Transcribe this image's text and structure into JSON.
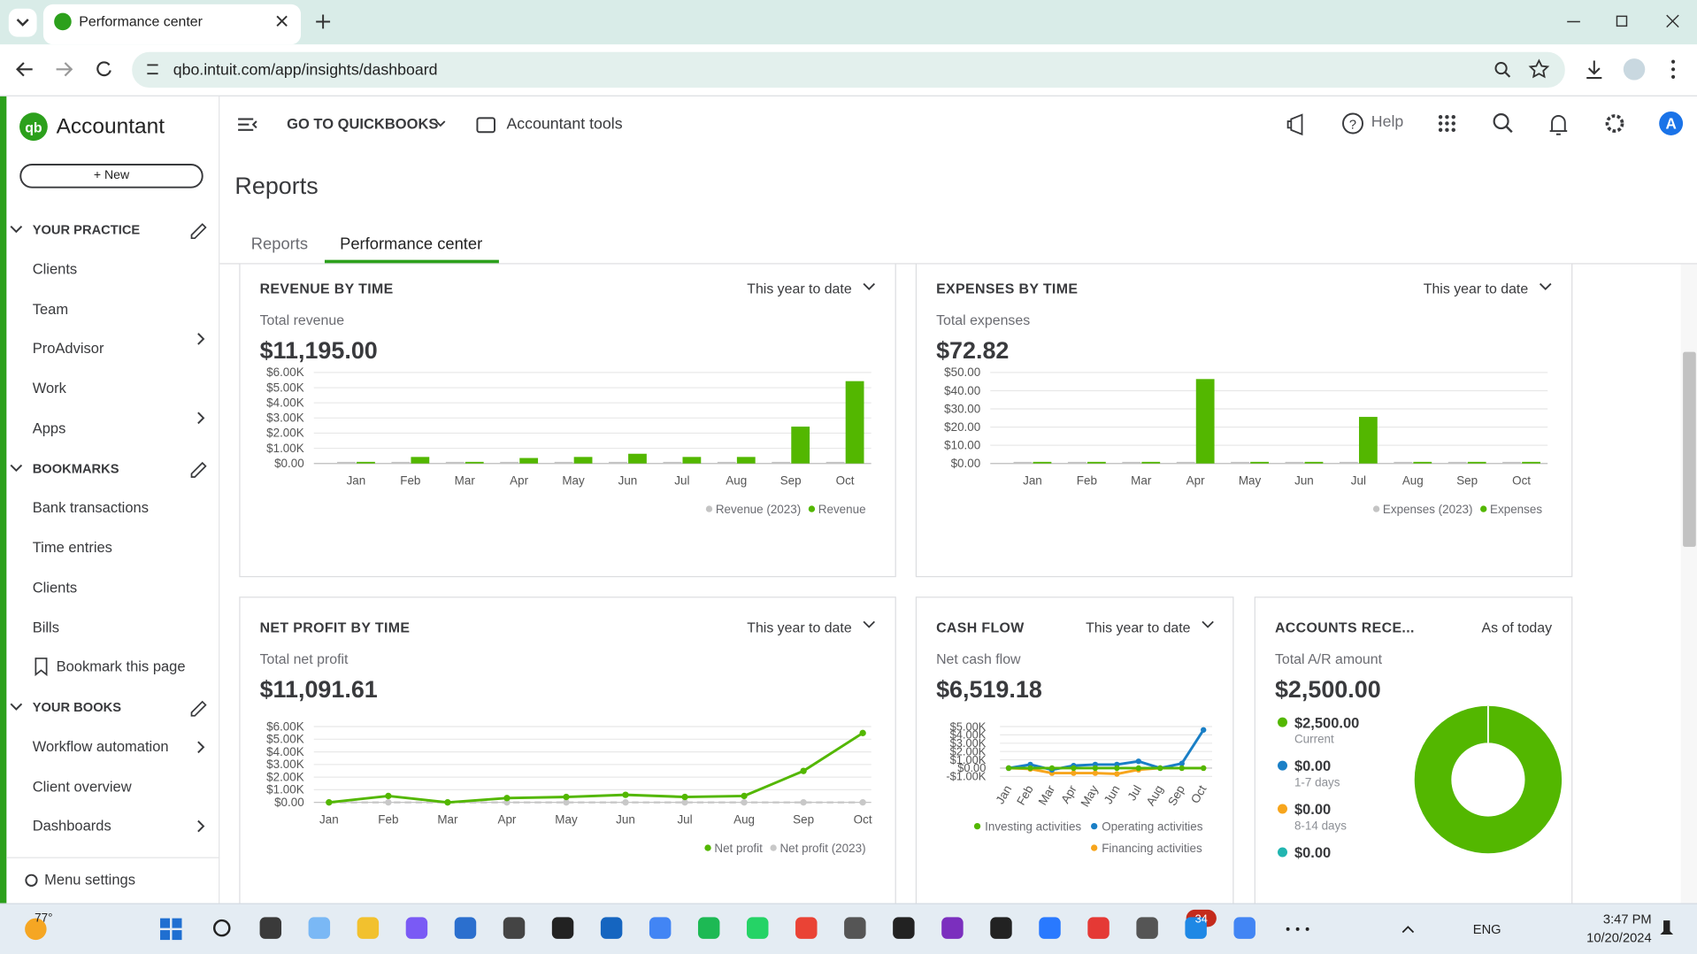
{
  "browser": {
    "tab_title": "Performance center",
    "url": "qbo.intuit.com/app/insights/dashboard"
  },
  "sidebar": {
    "brand": "Accountant",
    "new_button": "+ New",
    "sections": [
      {
        "title": "YOUR PRACTICE",
        "items": [
          "Clients",
          "Team",
          "ProAdvisor",
          "Work",
          "Apps"
        ]
      },
      {
        "title": "BOOKMARKS",
        "items": [
          "Bank transactions",
          "Time entries",
          "Clients",
          "Bills"
        ]
      },
      {
        "title": "YOUR BOOKS",
        "items": [
          "Workflow automation",
          "Client overview",
          "Dashboards"
        ]
      }
    ],
    "bookmark_link": "Bookmark this page",
    "menu_settings": "Menu settings"
  },
  "header": {
    "go_to": "GO TO QUICKBOOKS",
    "tools": "Accountant tools",
    "help": "Help",
    "avatar": "A"
  },
  "page": {
    "title": "Reports",
    "tabs": [
      "Reports",
      "Performance center"
    ]
  },
  "widgets": {
    "revenue": {
      "title": "REVENUE BY TIME",
      "period": "This year to date",
      "metric_label": "Total revenue",
      "metric": "$11,195.00",
      "chart": {
        "type": "bar",
        "categories": [
          "Jan",
          "Feb",
          "Mar",
          "Apr",
          "May",
          "Jun",
          "Jul",
          "Aug",
          "Sep",
          "Oct"
        ],
        "series": [
          {
            "name": "Revenue (2023)",
            "color": "#c4c4c4",
            "values": [
              0,
              0,
              0,
              0,
              0,
              0,
              0,
              0,
              0,
              0
            ]
          },
          {
            "name": "Revenue",
            "color": "#53b700",
            "values": [
              100,
              430,
              100,
              360,
              430,
              640,
              430,
              430,
              2430,
              5430
            ]
          }
        ],
        "ylim": [
          0,
          6000
        ],
        "yticks": [
          {
            "value": 0,
            "label": "$0.00"
          },
          {
            "value": 1000,
            "label": "$1.00K"
          },
          {
            "value": 2000,
            "label": "$2.00K"
          },
          {
            "value": 3000,
            "label": "$3.00K"
          },
          {
            "value": 4000,
            "label": "$4.00K"
          },
          {
            "value": 5000,
            "label": "$5.00K"
          },
          {
            "value": 6000,
            "label": "$6.00K"
          }
        ],
        "grid": true
      }
    },
    "expenses": {
      "title": "EXPENSES BY TIME",
      "period": "This year to date",
      "metric_label": "Total expenses",
      "metric": "$72.82",
      "chart": {
        "type": "bar",
        "categories": [
          "Jan",
          "Feb",
          "Mar",
          "Apr",
          "May",
          "Jun",
          "Jul",
          "Aug",
          "Sep",
          "Oct"
        ],
        "series": [
          {
            "name": "Expenses (2023)",
            "color": "#c4c4c4",
            "values": [
              0,
              0,
              0,
              0,
              0,
              0,
              0,
              0,
              0,
              0
            ]
          },
          {
            "name": "Expenses",
            "color": "#53b700",
            "values": [
              0.1,
              0.1,
              0.1,
              46.4,
              0.1,
              0.1,
              25.6,
              0.1,
              0.1,
              0.1
            ]
          }
        ],
        "ylim": [
          0,
          50
        ],
        "yticks": [
          {
            "value": 0,
            "label": "$0.00"
          },
          {
            "value": 10,
            "label": "$10.00"
          },
          {
            "value": 20,
            "label": "$20.00"
          },
          {
            "value": 30,
            "label": "$30.00"
          },
          {
            "value": 40,
            "label": "$40.00"
          },
          {
            "value": 50,
            "label": "$50.00"
          }
        ],
        "grid": true
      }
    },
    "net_profit": {
      "title": "NET PROFIT BY TIME",
      "period": "This year to date",
      "metric_label": "Total net profit",
      "metric": "$11,091.61",
      "chart": {
        "type": "line",
        "categories": [
          "Jan",
          "Feb",
          "Mar",
          "Apr",
          "May",
          "Jun",
          "Jul",
          "Aug",
          "Sep",
          "Oct"
        ],
        "series": [
          {
            "name": "Net profit",
            "color": "#53b700",
            "values": [
              0,
              510,
              0,
              340,
              430,
              600,
              430,
              510,
              2490,
              5490
            ]
          },
          {
            "name": "Net profit (2023)",
            "color": "#c8c8c8",
            "dashed": true,
            "values": [
              0,
              0,
              0,
              0,
              0,
              0,
              0,
              0,
              0,
              0
            ]
          }
        ],
        "ylim": [
          0,
          6000
        ],
        "yticks": [
          {
            "value": 0,
            "label": "$0.00"
          },
          {
            "value": 1000,
            "label": "$1.00K"
          },
          {
            "value": 2000,
            "label": "$2.00K"
          },
          {
            "value": 3000,
            "label": "$3.00K"
          },
          {
            "value": 4000,
            "label": "$4.00K"
          },
          {
            "value": 5000,
            "label": "$5.00K"
          },
          {
            "value": 6000,
            "label": "$6.00K"
          }
        ],
        "grid": true
      }
    },
    "cash_flow": {
      "title": "CASH FLOW",
      "period": "This year to date",
      "metric_label": "Net cash flow",
      "metric": "$6,519.18",
      "chart": {
        "type": "line",
        "categories": [
          "Jan",
          "Feb",
          "Mar",
          "Apr",
          "May",
          "Jun",
          "Jul",
          "Aug",
          "Sep",
          "Oct"
        ],
        "series": [
          {
            "name": "Investing activities",
            "color": "#53b700",
            "values": [
              0,
              0,
              0,
              0,
              0,
              0,
              0,
              0,
              0,
              0
            ]
          },
          {
            "name": "Operating activities",
            "color": "#1a7fc6",
            "values": [
              0,
              430,
              -200,
              300,
              430,
              430,
              820,
              0,
              560,
              4600
            ]
          },
          {
            "name": "Financing activities",
            "color": "#f7a51c",
            "values": [
              0,
              -100,
              -600,
              -600,
              -600,
              -700,
              -200,
              0,
              0,
              0
            ]
          }
        ],
        "ylim": [
          -1000,
          5000
        ],
        "yticks": [
          {
            "value": -1000,
            "label": "-$1.00K"
          },
          {
            "value": 0,
            "label": "$0.00"
          },
          {
            "value": 1000,
            "label": "$1.00K"
          },
          {
            "value": 2000,
            "label": "$2.00K"
          },
          {
            "value": 3000,
            "label": "$3.00K"
          },
          {
            "value": 4000,
            "label": "$4.00K"
          },
          {
            "value": 5000,
            "label": "$5.00K"
          }
        ],
        "grid": true
      }
    },
    "accounts_receivable": {
      "title": "ACCOUNTS RECE...",
      "period": "As of today",
      "metric_label": "Total A/R amount",
      "metric": "$2,500.00",
      "chart": {
        "type": "pie",
        "categories": [
          "Current",
          "1-7 days",
          "8-14 days",
          null
        ],
        "values": [
          2500,
          0,
          0,
          0
        ],
        "value_labels": [
          "$2,500.00",
          "$0.00",
          "$0.00",
          "$0.00"
        ],
        "colors": [
          "#53b700",
          "#1a7fc6",
          "#f7a51c",
          "#21b5b0"
        ],
        "donut": true
      }
    }
  },
  "taskbar": {
    "weather": "77°",
    "badge": "34",
    "language": "ENG",
    "time": "3:47 PM",
    "date": "10/20/2024"
  }
}
